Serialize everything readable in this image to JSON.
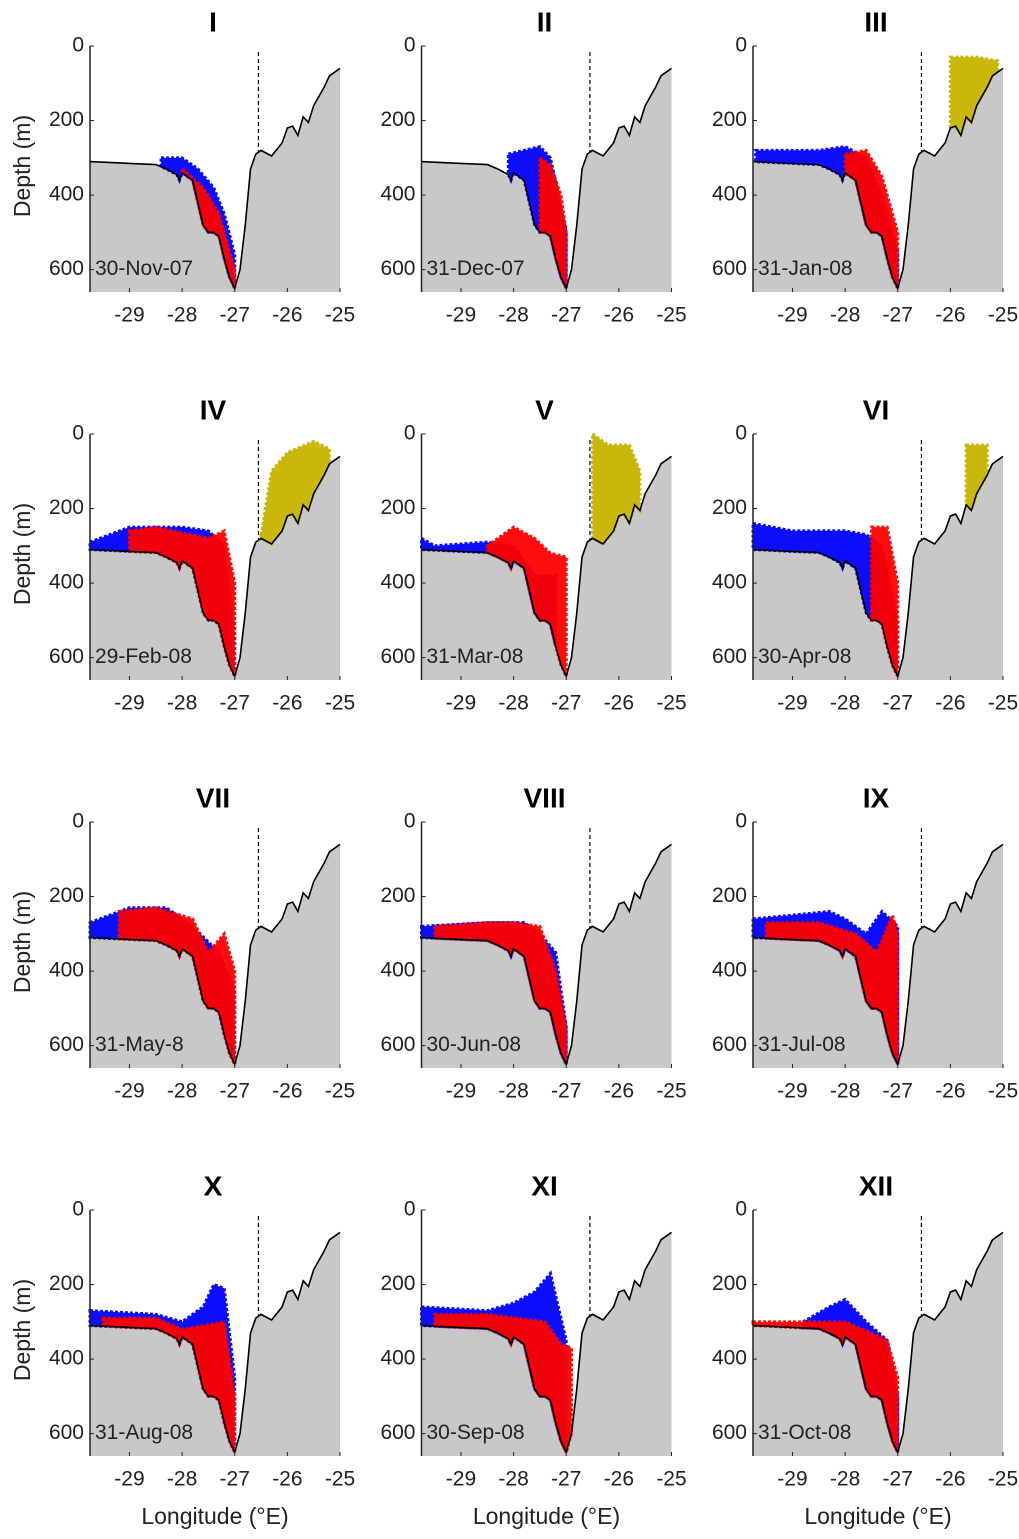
{
  "bathymetry": {
    "x": [
      -29.75,
      -29,
      -28.5,
      -28.3,
      -28.1,
      -28.05,
      -28.0,
      -27.8,
      -27.7,
      -27.6,
      -27.5,
      -27.4,
      -27.3,
      -27.2,
      -27.1,
      -27.0,
      -26.9,
      -26.8,
      -26.7,
      -26.6,
      -26.5,
      -26.3,
      -26.1,
      -26.0,
      -25.9,
      -25.8,
      -25.7,
      -25.6,
      -25.5,
      -25.3,
      -25.2,
      -25.0
    ],
    "depth": [
      310,
      315,
      318,
      330,
      345,
      360,
      340,
      360,
      420,
      480,
      500,
      500,
      510,
      570,
      620,
      650,
      600,
      480,
      330,
      290,
      280,
      295,
      260,
      220,
      215,
      240,
      190,
      205,
      160,
      110,
      80,
      60
    ]
  },
  "boundary_lon": -26.55,
  "chart_data": [
    {
      "type": "area",
      "title": "I",
      "annotation": "30-Nov-07",
      "ylabel": "Depth (m)",
      "xlim": [
        -29.75,
        -25
      ],
      "ylim": [
        0,
        660
      ],
      "xticks": [
        -29,
        -28,
        -27,
        -26,
        -25
      ],
      "yticks": [
        0,
        200,
        400,
        600
      ],
      "clouds": [
        {
          "color": "#0000ff",
          "x": [
            -28.4,
            -28.0,
            -27.7,
            -27.4,
            -27.2,
            -27.0
          ],
          "top": [
            300,
            300,
            330,
            380,
            450,
            560
          ]
        },
        {
          "color": "#ff0000",
          "x": [
            -28.0,
            -27.6,
            -27.3,
            -27.0
          ],
          "top": [
            330,
            380,
            450,
            600
          ]
        }
      ]
    },
    {
      "type": "area",
      "title": "II",
      "annotation": "31-Dec-07",
      "xlim": [
        -29.75,
        -25
      ],
      "ylim": [
        0,
        660
      ],
      "xticks": [
        -29,
        -28,
        -27,
        -26,
        -25
      ],
      "yticks": [
        0,
        200,
        400,
        600
      ],
      "clouds": [
        {
          "color": "#0000ff",
          "x": [
            -28.1,
            -27.8,
            -27.5,
            -27.3,
            -27.0
          ],
          "top": [
            290,
            280,
            270,
            300,
            500
          ]
        },
        {
          "color": "#ff0000",
          "x": [
            -27.5,
            -27.3,
            -27.1,
            -27.0
          ],
          "top": [
            300,
            320,
            400,
            500
          ]
        }
      ]
    },
    {
      "type": "area",
      "title": "III",
      "annotation": "31-Jan-08",
      "xlim": [
        -29.75,
        -25
      ],
      "ylim": [
        0,
        660
      ],
      "xticks": [
        -29,
        -28,
        -27,
        -26,
        -25
      ],
      "yticks": [
        0,
        200,
        400,
        600
      ],
      "clouds": [
        {
          "color": "#0000ff",
          "x": [
            -29.7,
            -28.5,
            -28.0,
            -27.6,
            -27.3,
            -27.0
          ],
          "top": [
            280,
            280,
            270,
            300,
            400,
            550
          ]
        },
        {
          "color": "#ff0000",
          "x": [
            -28.0,
            -27.6,
            -27.3,
            -27.0
          ],
          "top": [
            290,
            280,
            350,
            500
          ]
        },
        {
          "color": "#c8b400",
          "x": [
            -26.0,
            -25.5,
            -25.1
          ],
          "top": [
            30,
            30,
            40
          ]
        }
      ]
    },
    {
      "type": "area",
      "title": "IV",
      "annotation": "29-Feb-08",
      "ylabel": "Depth (m)",
      "xlim": [
        -29.75,
        -25
      ],
      "ylim": [
        0,
        660
      ],
      "xticks": [
        -29,
        -28,
        -27,
        -26,
        -25
      ],
      "yticks": [
        0,
        200,
        400,
        600
      ],
      "clouds": [
        {
          "color": "#0000ff",
          "x": [
            -29.75,
            -29.0,
            -28.0,
            -27.5,
            -27.2,
            -27.0
          ],
          "top": [
            290,
            250,
            250,
            260,
            300,
            550
          ]
        },
        {
          "color": "#ff0000",
          "x": [
            -29.0,
            -28.5,
            -27.5,
            -27.2,
            -27.0
          ],
          "top": [
            260,
            250,
            280,
            260,
            400
          ]
        },
        {
          "color": "#c8b400",
          "x": [
            -26.5,
            -26.3,
            -26.0,
            -25.5,
            -25.2
          ],
          "top": [
            270,
            100,
            50,
            20,
            40
          ]
        }
      ]
    },
    {
      "type": "area",
      "title": "V",
      "annotation": "31-Mar-08",
      "xlim": [
        -29.75,
        -25
      ],
      "ylim": [
        0,
        660
      ],
      "xticks": [
        -29,
        -28,
        -27,
        -26,
        -25
      ],
      "yticks": [
        0,
        200,
        400,
        600
      ],
      "clouds": [
        {
          "color": "#0000ff",
          "x": [
            -29.75,
            -29.5,
            -28.5,
            -28.0,
            -27.6,
            -27.2
          ],
          "top": [
            280,
            300,
            290,
            300,
            380,
            380
          ]
        },
        {
          "color": "#ff0000",
          "x": [
            -28.5,
            -28.0,
            -27.6,
            -27.3,
            -27.0
          ],
          "top": [
            300,
            250,
            280,
            320,
            330
          ]
        },
        {
          "color": "#c8b400",
          "x": [
            -26.5,
            -26.2,
            -25.8,
            -25.6
          ],
          "top": [
            0,
            30,
            30,
            100
          ]
        }
      ]
    },
    {
      "type": "area",
      "title": "VI",
      "annotation": "30-Apr-08",
      "xlim": [
        -29.75,
        -25
      ],
      "ylim": [
        0,
        660
      ],
      "xticks": [
        -29,
        -28,
        -27,
        -26,
        -25
      ],
      "yticks": [
        0,
        200,
        400,
        600
      ],
      "clouds": [
        {
          "color": "#0000ff",
          "x": [
            -29.75,
            -29.0,
            -28.0,
            -27.6,
            -27.3,
            -27.0
          ],
          "top": [
            240,
            260,
            260,
            270,
            300,
            500
          ]
        },
        {
          "color": "#ff0000",
          "x": [
            -27.5,
            -27.2,
            -27.0
          ],
          "top": [
            250,
            250,
            400
          ]
        },
        {
          "color": "#c8b400",
          "x": [
            -25.7,
            -25.5,
            -25.3
          ],
          "top": [
            30,
            30,
            30
          ]
        }
      ]
    },
    {
      "type": "area",
      "title": "VII",
      "annotation": "31-May-8",
      "ylabel": "Depth (m)",
      "xlim": [
        -29.75,
        -25
      ],
      "ylim": [
        0,
        660
      ],
      "xticks": [
        -29,
        -28,
        -27,
        -26,
        -25
      ],
      "yticks": [
        0,
        200,
        400,
        600
      ],
      "clouds": [
        {
          "color": "#0000ff",
          "x": [
            -29.75,
            -29.0,
            -28.3,
            -27.8,
            -27.3,
            -27.0
          ],
          "top": [
            270,
            230,
            230,
            280,
            350,
            450
          ]
        },
        {
          "color": "#ff0000",
          "x": [
            -29.2,
            -28.5,
            -27.8,
            -27.5,
            -27.2,
            -27.0
          ],
          "top": [
            240,
            230,
            260,
            350,
            300,
            400
          ]
        }
      ]
    },
    {
      "type": "area",
      "title": "VIII",
      "annotation": "30-Jun-08",
      "xlim": [
        -29.75,
        -25
      ],
      "ylim": [
        0,
        660
      ],
      "xticks": [
        -29,
        -28,
        -27,
        -26,
        -25
      ],
      "yticks": [
        0,
        200,
        400,
        600
      ],
      "clouds": [
        {
          "color": "#0000ff",
          "x": [
            -29.75,
            -28.5,
            -27.8,
            -27.5,
            -27.2,
            -27.0
          ],
          "top": [
            280,
            270,
            270,
            300,
            350,
            550
          ]
        },
        {
          "color": "#ff0000",
          "x": [
            -29.5,
            -28.5,
            -28.0,
            -27.5,
            -27.2,
            -27.0
          ],
          "top": [
            280,
            270,
            270,
            280,
            400,
            550
          ]
        }
      ]
    },
    {
      "type": "area",
      "title": "IX",
      "annotation": "31-Jul-08",
      "xlim": [
        -29.75,
        -25
      ],
      "ylim": [
        0,
        660
      ],
      "xticks": [
        -29,
        -28,
        -27,
        -26,
        -25
      ],
      "yticks": [
        0,
        200,
        400,
        600
      ],
      "clouds": [
        {
          "color": "#0000ff",
          "x": [
            -29.75,
            -29.0,
            -28.3,
            -28.0,
            -27.6,
            -27.3,
            -27.0
          ],
          "top": [
            260,
            250,
            240,
            260,
            300,
            240,
            280
          ]
        },
        {
          "color": "#ff0000",
          "x": [
            -29.5,
            -28.5,
            -27.8,
            -27.4,
            -27.1,
            -27.0
          ],
          "top": [
            270,
            270,
            300,
            350,
            250,
            300
          ]
        }
      ]
    },
    {
      "type": "area",
      "title": "X",
      "annotation": "31-Aug-08",
      "ylabel": "Depth (m)",
      "xlabel": "Longitude (°E)",
      "xlim": [
        -29.75,
        -25
      ],
      "ylim": [
        0,
        660
      ],
      "xticks": [
        -29,
        -28,
        -27,
        -26,
        -25
      ],
      "yticks": [
        0,
        200,
        400,
        600
      ],
      "clouds": [
        {
          "color": "#0000ff",
          "x": [
            -29.75,
            -28.5,
            -28.0,
            -27.6,
            -27.4,
            -27.2,
            -27.0
          ],
          "top": [
            270,
            280,
            300,
            260,
            200,
            210,
            450
          ]
        },
        {
          "color": "#ff0000",
          "x": [
            -29.5,
            -28.5,
            -28.0,
            -27.2,
            -27.0
          ],
          "top": [
            290,
            290,
            320,
            300,
            500
          ]
        }
      ]
    },
    {
      "type": "area",
      "title": "XI",
      "annotation": "30-Sep-08",
      "xlabel": "Longitude (°E)",
      "xlim": [
        -29.75,
        -25
      ],
      "ylim": [
        0,
        660
      ],
      "xticks": [
        -29,
        -28,
        -27,
        -26,
        -25
      ],
      "yticks": [
        0,
        200,
        400,
        600
      ],
      "clouds": [
        {
          "color": "#0000ff",
          "x": [
            -29.75,
            -28.5,
            -28.0,
            -27.6,
            -27.3,
            -27.0
          ],
          "top": [
            260,
            270,
            250,
            220,
            170,
            350
          ]
        },
        {
          "color": "#ff0000",
          "x": [
            -29.5,
            -28.5,
            -27.4,
            -27.1,
            -26.9
          ],
          "top": [
            280,
            280,
            300,
            360,
            370
          ]
        }
      ]
    },
    {
      "type": "area",
      "title": "XII",
      "annotation": "31-Oct-08",
      "xlabel": "Longitude (°E)",
      "xlim": [
        -29.75,
        -25
      ],
      "ylim": [
        0,
        660
      ],
      "xticks": [
        -29,
        -28,
        -27,
        -26,
        -25
      ],
      "yticks": [
        0,
        200,
        400,
        600
      ],
      "clouds": [
        {
          "color": "#0000ff",
          "x": [
            -28.8,
            -28.3,
            -28.0,
            -27.6,
            -27.2,
            -27.0
          ],
          "top": [
            300,
            260,
            240,
            300,
            350,
            500
          ]
        },
        {
          "color": "#ff0000",
          "x": [
            -29.75,
            -28.0,
            -27.5,
            -27.2,
            -27.0
          ],
          "top": [
            300,
            300,
            330,
            350,
            450
          ]
        }
      ]
    }
  ]
}
